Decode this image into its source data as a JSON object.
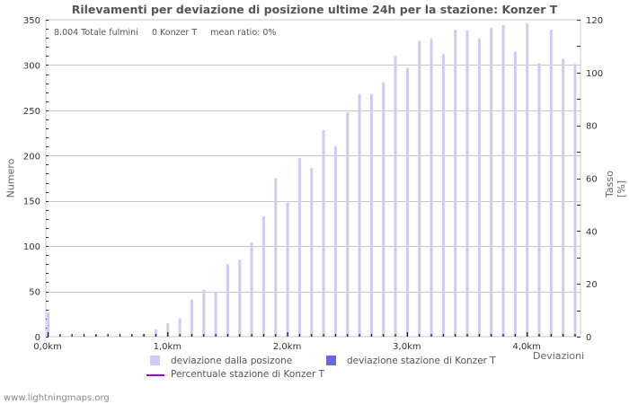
{
  "header": {
    "title": "Rilevamenti per deviazione di posizione ultime 24h per la stazione: Konzer T"
  },
  "stats": {
    "total": "8.004 Totale fulmini",
    "station": "0 Konzer T",
    "ratio": "mean ratio: 0%"
  },
  "axes": {
    "ylabel_left": "Numero",
    "ylabel_right": "Tasso [%]",
    "xlabel": "Deviazioni",
    "left_ticks": [
      "0",
      "50",
      "100",
      "150",
      "200",
      "250",
      "300",
      "350"
    ],
    "right_ticks": [
      "0",
      "20",
      "40",
      "60",
      "80",
      "100",
      "120"
    ],
    "x_ticks": [
      "0,0km",
      "1,0km",
      "2,0km",
      "3,0km",
      "4,0km"
    ]
  },
  "legend": {
    "item1": "deviazione dalla posizone",
    "item2": "deviazione stazione di Konzer T",
    "item3": "Percentuale stazione di Konzer T",
    "color1": "#ccccf8",
    "color2": "#6666ee",
    "color3": "#a000e0"
  },
  "footer": {
    "source": "www.lightningmaps.org"
  },
  "chart_data": {
    "type": "bar",
    "title": "Rilevamenti per deviazione di posizione ultime 24h per la stazione: Konzer T",
    "xlabel": "Deviazioni",
    "ylabel": "Numero",
    "ylabel_right": "Tasso [%]",
    "ylim": [
      0,
      350
    ],
    "ylim_right": [
      0,
      120
    ],
    "x_tick_labels": [
      "0,0km",
      "1,0km",
      "2,0km",
      "3,0km",
      "4,0km"
    ],
    "bin_km": 0.1,
    "categories": [
      "0.0",
      "0.1",
      "0.2",
      "0.3",
      "0.4",
      "0.5",
      "0.6",
      "0.7",
      "0.8",
      "0.9",
      "1.0",
      "1.1",
      "1.2",
      "1.3",
      "1.4",
      "1.5",
      "1.6",
      "1.7",
      "1.8",
      "1.9",
      "2.0",
      "2.1",
      "2.2",
      "2.3",
      "2.4",
      "2.5",
      "2.6",
      "2.7",
      "2.8",
      "2.9",
      "3.0",
      "3.1",
      "3.2",
      "3.3",
      "3.4",
      "3.5",
      "3.6",
      "3.7",
      "3.8",
      "3.9",
      "4.0",
      "4.1",
      "4.2",
      "4.3",
      "4.4"
    ],
    "series": [
      {
        "name": "deviazione dalla posizone",
        "values": [
          27,
          0,
          1,
          0,
          2,
          0,
          0,
          0,
          3,
          8,
          15,
          20,
          41,
          52,
          49,
          80,
          85,
          104,
          133,
          175,
          148,
          197,
          186,
          228,
          210,
          248,
          268,
          268,
          281,
          310,
          297,
          327,
          329,
          312,
          339,
          338,
          329,
          341,
          344,
          315,
          346,
          302,
          339,
          307,
          301
        ]
      },
      {
        "name": "deviazione stazione di Konzer T",
        "values": [
          0,
          0,
          0,
          0,
          0,
          0,
          0,
          0,
          0,
          0,
          0,
          0,
          0,
          0,
          0,
          0,
          0,
          0,
          0,
          0,
          0,
          0,
          0,
          0,
          0,
          0,
          0,
          0,
          0,
          0,
          0,
          0,
          0,
          0,
          0,
          0,
          0,
          0,
          0,
          0,
          0,
          0,
          0,
          0,
          0
        ]
      },
      {
        "name": "Percentuale stazione di Konzer T",
        "values": []
      }
    ],
    "grid": true,
    "legend_position": "bottom"
  }
}
